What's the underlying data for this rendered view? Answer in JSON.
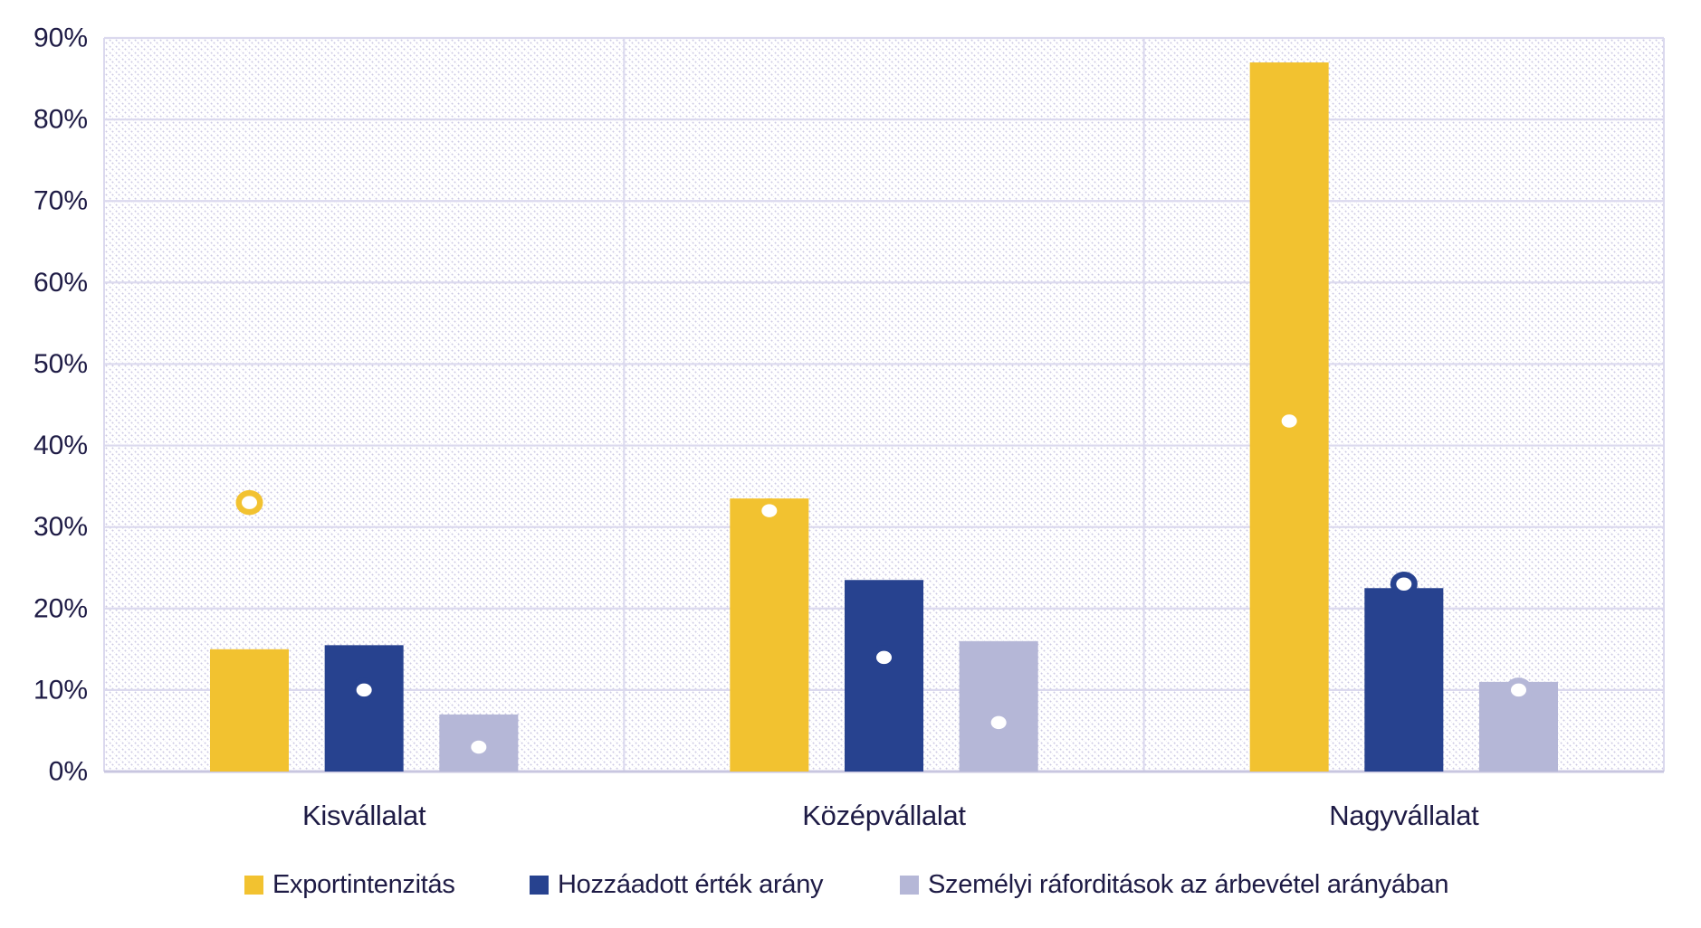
{
  "colors": {
    "background": "#FFFFFF",
    "text": "#1E1B45",
    "gridline": "#DBD9EE",
    "axis_line": "#C8C6E0",
    "hatch": "#CDCAE4",
    "marker_fill": "#FFFFFF"
  },
  "chart_data": {
    "type": "bar",
    "title": "",
    "xlabel": "",
    "ylabel": "",
    "categories": [
      "Kisvállalat",
      "Középvállalat",
      "Nagyvállalat"
    ],
    "series": [
      {
        "name": "Exportintenzitás",
        "color": "#F2C230",
        "values": [
          15,
          33.5,
          87
        ],
        "marker_values": [
          33,
          32,
          43
        ]
      },
      {
        "name": "Hozzáadott érték arány",
        "color": "#27428F",
        "values": [
          15.5,
          23.5,
          22.5
        ],
        "marker_values": [
          10,
          14,
          23
        ]
      },
      {
        "name": "Személyi ráforditások az árbevétel arányában",
        "color": "#B5B7D7",
        "values": [
          7,
          16,
          11
        ],
        "marker_values": [
          3,
          6,
          10
        ]
      }
    ],
    "marker_style": "white-dot-with-series-color-ring",
    "y_ticks": [
      "0%",
      "10%",
      "20%",
      "30%",
      "40%",
      "50%",
      "60%",
      "70%",
      "80%",
      "90%"
    ],
    "ylim": [
      0,
      90
    ],
    "grid": true,
    "plot_fill": "diagonal-hatch",
    "legend_position": "bottom"
  }
}
